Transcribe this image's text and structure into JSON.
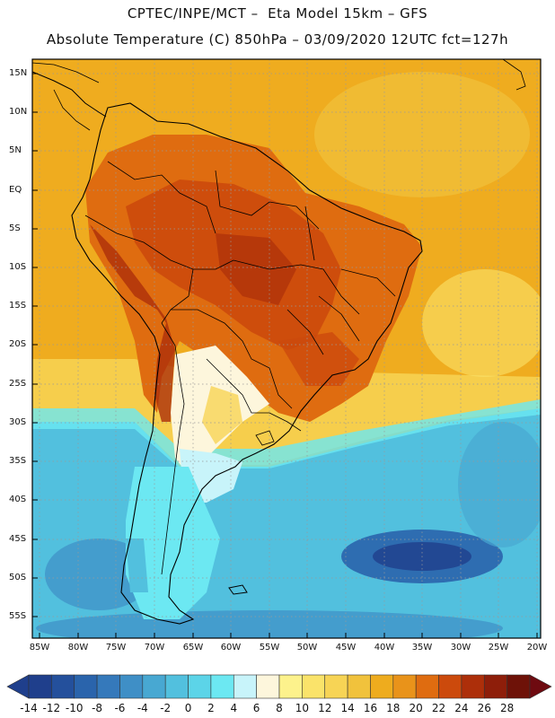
{
  "title_line1": "CPTEC/INPE/MCT –  Eta Model 15km – GFS",
  "title_line2": "Absolute Temperature (C) 850hPa – 03/09/2020 12UTC fct=127h",
  "lat_labels": [
    "15N",
    "10N",
    "5N",
    "EQ",
    "5S",
    "10S",
    "15S",
    "20S",
    "25S",
    "30S",
    "35S",
    "40S",
    "45S",
    "50S",
    "55S"
  ],
  "lon_labels": [
    "85W",
    "80W",
    "75W",
    "70W",
    "65W",
    "60W",
    "55W",
    "50W",
    "45W",
    "40W",
    "35W",
    "30W",
    "25W",
    "20W"
  ],
  "colorbar": {
    "labels": [
      "-14",
      "-12",
      "-10",
      "-8",
      "-6",
      "-4",
      "-2",
      "0",
      "2",
      "4",
      "6",
      "8",
      "10",
      "12",
      "14",
      "16",
      "18",
      "20",
      "22",
      "24",
      "26",
      "28"
    ],
    "colors": [
      "#1f3f8c",
      "#24509c",
      "#2a64ac",
      "#3579bb",
      "#3f8fc6",
      "#48a8d2",
      "#52c0de",
      "#5cd4e8",
      "#6ce8f2",
      "#c8f4fa",
      "#fdf6dc",
      "#fdf28c",
      "#fae36a",
      "#f7d455",
      "#f1c23c",
      "#eeac1e",
      "#e9931a",
      "#df6c10",
      "#cc4a0c",
      "#ad2f0a",
      "#8e1e0a",
      "#6e1208"
    ],
    "under_color": "#1f3f8c",
    "over_color": "#6e0a10"
  }
}
